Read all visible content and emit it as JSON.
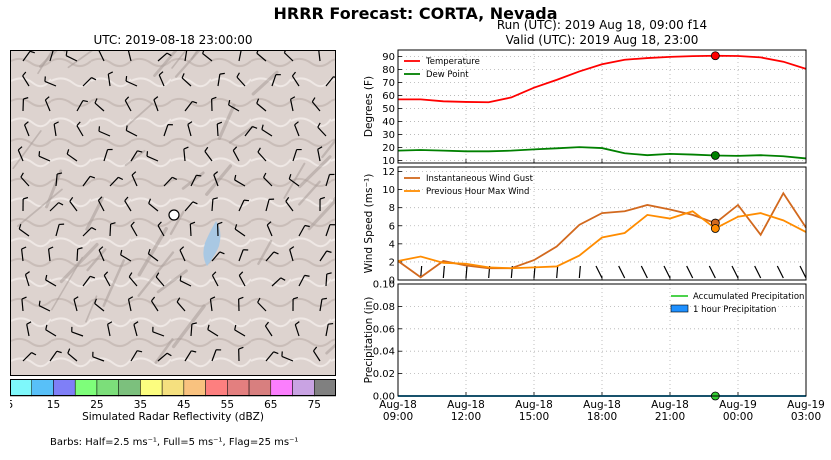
{
  "figure": {
    "title": "HRRR Forecast: CORTA, Nevada",
    "map_title": "UTC: 2019-08-18 23:00:00",
    "run_title": "Run (UTC): 2019 Aug 18, 09:00 f14",
    "valid_title": "Valid (UTC): 2019 Aug 18, 23:00",
    "colorbar_label": "Simulated Radar Reflectivity (dBZ)",
    "barb_note": "Barbs: Half=2.5 ms⁻¹, Full=5 ms⁻¹, Flag=25 ms⁻¹"
  },
  "colorbar": {
    "ticks": [
      "5",
      "15",
      "25",
      "35",
      "45",
      "55",
      "65",
      "75"
    ],
    "colors": [
      "#7ef8fb",
      "#58c0f8",
      "#7f7ff7",
      "#7efe7a",
      "#7cde7a",
      "#7cc07d",
      "#fcfd7f",
      "#f5e07f",
      "#f9c27f",
      "#fd7f7f",
      "#e37f7f",
      "#d87f7f",
      "#fb7efd",
      "#c9a3e3",
      "#808080"
    ]
  },
  "chart_data": [
    {
      "type": "line",
      "ylabel": "Degrees (F)",
      "ylim": [
        8,
        95
      ],
      "yticks": [
        10,
        20,
        30,
        40,
        50,
        60,
        70,
        80,
        90
      ],
      "grid": true,
      "legend_position": "top-left",
      "x_hours": [
        0,
        1,
        2,
        3,
        4,
        5,
        6,
        7,
        8,
        9,
        10,
        11,
        12,
        13,
        14,
        15,
        16,
        17,
        18
      ],
      "series": [
        {
          "name": "Temperature",
          "color": "#ff0000",
          "values": [
            57,
            57,
            55.5,
            55,
            54.8,
            58.5,
            66,
            72,
            78.5,
            84,
            87.5,
            88.8,
            89.7,
            90.3,
            90.6,
            90.4,
            89.3,
            86,
            80.5
          ]
        },
        {
          "name": "Dew Point",
          "color": "#008000",
          "values": [
            17.5,
            18,
            17.5,
            17,
            17,
            17.5,
            18.5,
            19.3,
            20.2,
            19.5,
            15.5,
            14,
            15,
            14.5,
            13.8,
            13.5,
            14,
            13.2,
            11.5
          ]
        }
      ],
      "markers": [
        {
          "series": "Temperature",
          "hour": 14,
          "value": 90.6
        },
        {
          "series": "Dew Point",
          "hour": 14,
          "value": 13.8
        }
      ]
    },
    {
      "type": "line",
      "ylabel": "Wind Speed (ms⁻¹)",
      "ylim": [
        0,
        12.5
      ],
      "yticks": [
        0,
        2,
        4,
        6,
        8,
        10,
        12
      ],
      "grid": true,
      "legend_position": "top-left",
      "x_hours": [
        0,
        1,
        2,
        3,
        4,
        5,
        6,
        7,
        8,
        9,
        10,
        11,
        12,
        13,
        14,
        15,
        16,
        17,
        18
      ],
      "series": [
        {
          "name": "Instantaneous Wind Gust",
          "color": "#d2691e",
          "values": [
            2.1,
            0.3,
            2.1,
            1.6,
            1.3,
            1.3,
            2.2,
            3.7,
            6.1,
            7.4,
            7.6,
            8.3,
            7.8,
            7.2,
            6.3,
            8.3,
            5,
            9.6,
            5.8
          ]
        },
        {
          "name": "Previous Hour Max Wind",
          "color": "#ff8c00",
          "values": [
            2.1,
            2.6,
            1.9,
            1.8,
            1.4,
            1.3,
            1.4,
            1.5,
            2.7,
            4.7,
            5.2,
            7.2,
            6.8,
            7.6,
            5.7,
            7.0,
            7.4,
            6.6,
            5.3
          ]
        }
      ],
      "markers": [
        {
          "series": "Instantaneous Wind Gust",
          "hour": 14,
          "value": 6.3
        },
        {
          "series": "Previous Hour Max Wind",
          "hour": 14,
          "value": 5.7
        }
      ]
    },
    {
      "type": "area",
      "ylabel": "Precipitation (in)",
      "ylim": [
        0,
        0.1
      ],
      "yticks": [
        "0.00",
        "0.02",
        "0.04",
        "0.06",
        "0.08",
        "0.10"
      ],
      "grid": true,
      "legend_position": "top-right",
      "x_ticks": [
        {
          "hour": 0,
          "l1": "Aug-18",
          "l2": "09:00"
        },
        {
          "hour": 3,
          "l1": "Aug-18",
          "l2": "12:00"
        },
        {
          "hour": 6,
          "l1": "Aug-18",
          "l2": "15:00"
        },
        {
          "hour": 9,
          "l1": "Aug-18",
          "l2": "18:00"
        },
        {
          "hour": 12,
          "l1": "Aug-18",
          "l2": "21:00"
        },
        {
          "hour": 15,
          "l1": "Aug-19",
          "l2": "00:00"
        },
        {
          "hour": 18,
          "l1": "Aug-19",
          "l2": "03:00"
        }
      ],
      "series": [
        {
          "name": "Accumulated Precipitation",
          "color": "#33cc33",
          "values": [
            0,
            0,
            0,
            0,
            0,
            0,
            0,
            0,
            0,
            0,
            0,
            0,
            0,
            0,
            0,
            0,
            0,
            0,
            0
          ]
        },
        {
          "name": "1 hour Precipitation",
          "color": "#1e90ff",
          "values": [
            0,
            0,
            0,
            0,
            0,
            0,
            0,
            0,
            0,
            0,
            0,
            0,
            0,
            0,
            0,
            0,
            0,
            0,
            0
          ]
        }
      ],
      "markers": [
        {
          "series": "Accumulated Precipitation",
          "hour": 14,
          "value": 0
        }
      ]
    }
  ]
}
